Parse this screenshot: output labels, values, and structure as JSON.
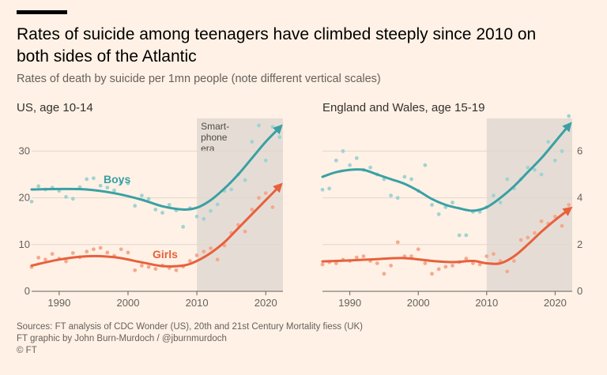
{
  "header": {
    "title": "Rates of suicide among teenagers have climbed steeply since 2010 on both sides of the Atlantic",
    "subtitle": "Rates of death by suicide per 1mn people (note different vertical scales)"
  },
  "footer": {
    "sources": "Sources: FT analysis of CDC Wonder (US), 20th and 21st Century Mortality fiess (UK)",
    "credit": "FT graphic by John Burn-Murdoch / @jburnmurdoch",
    "copyright": "© FT"
  },
  "colors": {
    "boys": "#3aa0a4",
    "girls": "#e8603c",
    "boys_dots": "#9fd3d3",
    "girls_dots": "#f4a98e",
    "shade": "#e5ddd5",
    "background": "#fff1e5"
  },
  "chart_data": [
    {
      "type": "scatter",
      "title": "US, age 10-14",
      "xlim": [
        1986,
        2022.5
      ],
      "ylim": [
        0,
        37
      ],
      "y_ticks": [
        0,
        10,
        20,
        30
      ],
      "x_ticks": [
        1990,
        2000,
        2010,
        2020
      ],
      "y_axis_side": "left",
      "shaded_region": {
        "from": 2010,
        "to": 2022.5,
        "label": [
          "Smart-",
          "phone",
          "era"
        ]
      },
      "series": [
        {
          "name": "Boys",
          "points": [
            [
              1986,
              19.2
            ],
            [
              1987,
              22.5
            ],
            [
              1988,
              21.8
            ],
            [
              1989,
              22.2
            ],
            [
              1990,
              21.5
            ],
            [
              1991,
              20.2
            ],
            [
              1992,
              19.8
            ],
            [
              1993,
              22.3
            ],
            [
              1994,
              24.0
            ],
            [
              1995,
              24.2
            ],
            [
              1996,
              22.6
            ],
            [
              1997,
              22.2
            ],
            [
              1998,
              21.6
            ],
            [
              1999,
              23.3
            ],
            [
              2000,
              23.1
            ],
            [
              2001,
              18.3
            ],
            [
              2002,
              20.5
            ],
            [
              2003,
              19.8
            ],
            [
              2004,
              17.5
            ],
            [
              2005,
              16.8
            ],
            [
              2006,
              18.5
            ],
            [
              2007,
              17.3
            ],
            [
              2008,
              13.8
            ],
            [
              2009,
              17.8
            ],
            [
              2010,
              16.0
            ],
            [
              2011,
              15.5
            ],
            [
              2012,
              17.2
            ],
            [
              2013,
              18.6
            ],
            [
              2014,
              21.5
            ],
            [
              2015,
              21.8
            ],
            [
              2016,
              25.0
            ],
            [
              2017,
              23.8
            ],
            [
              2018,
              32.0
            ],
            [
              2019,
              35.5
            ],
            [
              2020,
              28.0
            ],
            [
              2021,
              35.2
            ],
            [
              2022,
              33.0
            ]
          ],
          "trend": [
            [
              1986,
              21.8
            ],
            [
              1990,
              21.9
            ],
            [
              1994,
              21.8
            ],
            [
              1998,
              21.0
            ],
            [
              2002,
              19.6
            ],
            [
              2005,
              18.2
            ],
            [
              2008,
              17.5
            ],
            [
              2010,
              17.9
            ],
            [
              2012,
              19.5
            ],
            [
              2014,
              22.0
            ],
            [
              2016,
              25.0
            ],
            [
              2018,
              28.5
            ],
            [
              2020,
              32.0
            ],
            [
              2022,
              35.0
            ]
          ]
        },
        {
          "name": "Girls",
          "points": [
            [
              1986,
              5.2
            ],
            [
              1987,
              7.2
            ],
            [
              1988,
              6.8
            ],
            [
              1989,
              8.0
            ],
            [
              1990,
              7.0
            ],
            [
              1991,
              6.4
            ],
            [
              1992,
              8.2
            ],
            [
              1993,
              7.3
            ],
            [
              1994,
              8.5
            ],
            [
              1995,
              9.0
            ],
            [
              1996,
              9.3
            ],
            [
              1997,
              8.3
            ],
            [
              1998,
              7.6
            ],
            [
              1999,
              9.0
            ],
            [
              2000,
              8.3
            ],
            [
              2001,
              4.5
            ],
            [
              2002,
              5.5
            ],
            [
              2003,
              5.2
            ],
            [
              2004,
              4.8
            ],
            [
              2005,
              5.5
            ],
            [
              2006,
              5.0
            ],
            [
              2007,
              4.5
            ],
            [
              2008,
              5.3
            ],
            [
              2009,
              6.5
            ],
            [
              2010,
              7.7
            ],
            [
              2011,
              8.5
            ],
            [
              2012,
              9.2
            ],
            [
              2013,
              6.8
            ],
            [
              2014,
              9.8
            ],
            [
              2015,
              12.5
            ],
            [
              2016,
              14.2
            ],
            [
              2017,
              12.8
            ],
            [
              2018,
              17.5
            ],
            [
              2019,
              20.0
            ],
            [
              2020,
              21.0
            ],
            [
              2021,
              18.0
            ],
            [
              2022,
              22.5
            ]
          ],
          "trend": [
            [
              1986,
              5.5
            ],
            [
              1990,
              6.8
            ],
            [
              1994,
              7.5
            ],
            [
              1998,
              7.3
            ],
            [
              2002,
              6.2
            ],
            [
              2005,
              5.4
            ],
            [
              2008,
              5.5
            ],
            [
              2010,
              6.5
            ],
            [
              2012,
              8.2
            ],
            [
              2014,
              10.5
            ],
            [
              2016,
              13.5
            ],
            [
              2018,
              16.5
            ],
            [
              2020,
              19.5
            ],
            [
              2022,
              22.5
            ]
          ]
        }
      ]
    },
    {
      "type": "scatter",
      "title": "England and Wales, age 15-19",
      "xlim": [
        1986,
        2022.5
      ],
      "ylim": [
        0,
        7.4
      ],
      "y_ticks": [
        0,
        2,
        4,
        6
      ],
      "x_ticks": [
        1990,
        2000,
        2010,
        2020
      ],
      "y_axis_side": "right",
      "shaded_region": {
        "from": 2010,
        "to": 2022.5
      },
      "series": [
        {
          "name": "Boys",
          "points": [
            [
              1986,
              4.35
            ],
            [
              1987,
              4.4
            ],
            [
              1988,
              5.6
            ],
            [
              1989,
              6.0
            ],
            [
              1990,
              5.4
            ],
            [
              1991,
              5.7
            ],
            [
              1992,
              5.2
            ],
            [
              1993,
              5.3
            ],
            [
              1994,
              5.0
            ],
            [
              1995,
              4.8
            ],
            [
              1996,
              4.1
            ],
            [
              1997,
              4.0
            ],
            [
              1998,
              4.9
            ],
            [
              1999,
              4.8
            ],
            [
              2000,
              4.3
            ],
            [
              2001,
              5.4
            ],
            [
              2002,
              3.7
            ],
            [
              2003,
              3.3
            ],
            [
              2004,
              3.6
            ],
            [
              2005,
              3.8
            ],
            [
              2006,
              2.4
            ],
            [
              2007,
              2.4
            ],
            [
              2008,
              3.4
            ],
            [
              2009,
              3.4
            ],
            [
              2010,
              3.6
            ],
            [
              2011,
              4.1
            ],
            [
              2012,
              3.8
            ],
            [
              2013,
              4.8
            ],
            [
              2014,
              4.4
            ],
            [
              2015,
              4.8
            ],
            [
              2016,
              5.3
            ],
            [
              2017,
              5.2
            ],
            [
              2018,
              5.0
            ],
            [
              2019,
              6.4
            ],
            [
              2020,
              5.6
            ],
            [
              2021,
              6.0
            ],
            [
              2022,
              7.5
            ]
          ],
          "trend": [
            [
              1986,
              4.9
            ],
            [
              1988,
              5.1
            ],
            [
              1990,
              5.2
            ],
            [
              1992,
              5.2
            ],
            [
              1994,
              5.0
            ],
            [
              1996,
              4.8
            ],
            [
              1998,
              4.6
            ],
            [
              2000,
              4.3
            ],
            [
              2002,
              3.95
            ],
            [
              2004,
              3.7
            ],
            [
              2006,
              3.55
            ],
            [
              2008,
              3.45
            ],
            [
              2010,
              3.6
            ],
            [
              2012,
              4.0
            ],
            [
              2014,
              4.5
            ],
            [
              2016,
              5.1
            ],
            [
              2018,
              5.7
            ],
            [
              2020,
              6.4
            ],
            [
              2022,
              7.1
            ]
          ]
        },
        {
          "name": "Girls",
          "points": [
            [
              1986,
              1.15
            ],
            [
              1987,
              1.25
            ],
            [
              1988,
              1.2
            ],
            [
              1989,
              1.35
            ],
            [
              1990,
              1.3
            ],
            [
              1991,
              1.45
            ],
            [
              1992,
              1.5
            ],
            [
              1993,
              1.3
            ],
            [
              1994,
              1.2
            ],
            [
              1995,
              0.75
            ],
            [
              1996,
              1.1
            ],
            [
              1997,
              2.1
            ],
            [
              1998,
              1.5
            ],
            [
              1999,
              1.5
            ],
            [
              2000,
              1.8
            ],
            [
              2001,
              1.2
            ],
            [
              2002,
              0.75
            ],
            [
              2003,
              0.95
            ],
            [
              2004,
              1.05
            ],
            [
              2005,
              1.1
            ],
            [
              2006,
              1.25
            ],
            [
              2007,
              1.4
            ],
            [
              2008,
              1.2
            ],
            [
              2009,
              1.15
            ],
            [
              2010,
              1.5
            ],
            [
              2011,
              1.6
            ],
            [
              2012,
              1.3
            ],
            [
              2013,
              0.85
            ],
            [
              2014,
              1.3
            ],
            [
              2015,
              2.2
            ],
            [
              2016,
              2.3
            ],
            [
              2017,
              2.5
            ],
            [
              2018,
              3.0
            ],
            [
              2019,
              2.9
            ],
            [
              2020,
              3.2
            ],
            [
              2021,
              2.8
            ],
            [
              2022,
              3.7
            ]
          ],
          "trend": [
            [
              1986,
              1.28
            ],
            [
              1990,
              1.32
            ],
            [
              1994,
              1.38
            ],
            [
              1998,
              1.42
            ],
            [
              2002,
              1.3
            ],
            [
              2005,
              1.25
            ],
            [
              2008,
              1.3
            ],
            [
              2010,
              1.2
            ],
            [
              2012,
              1.2
            ],
            [
              2014,
              1.5
            ],
            [
              2016,
              2.0
            ],
            [
              2018,
              2.55
            ],
            [
              2020,
              3.05
            ],
            [
              2022,
              3.5
            ]
          ]
        }
      ]
    }
  ]
}
